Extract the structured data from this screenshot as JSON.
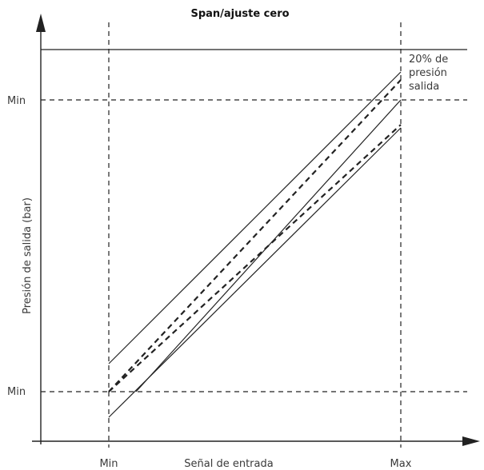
{
  "title": "Span/ajuste cero",
  "y_axis": {
    "label": "Presión de salida (bar)",
    "tick_upper": "Min",
    "tick_lower": "Min"
  },
  "x_axis": {
    "label": "Señal de entrada",
    "tick_left": "Min",
    "tick_right": "Max"
  },
  "annotation": {
    "line1": "20% de",
    "line2": "presión",
    "line3": "salida"
  }
}
